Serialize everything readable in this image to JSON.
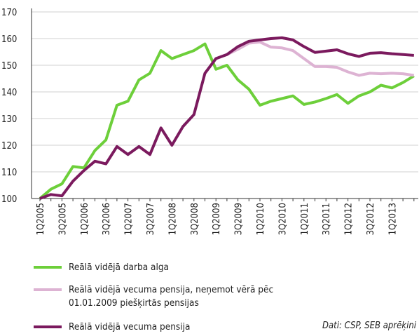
{
  "chart_data": {
    "type": "line",
    "categories": [
      "1Q2005",
      null,
      "3Q2005",
      null,
      "1Q2006",
      null,
      "3Q2006",
      null,
      "1Q2007",
      null,
      "3Q2007",
      null,
      "1Q2008",
      null,
      "3Q2008",
      null,
      "1Q2009",
      null,
      "3Q2009",
      null,
      "1Q2010",
      null,
      "3Q2010",
      null,
      "1Q2011",
      null,
      "3Q2011",
      null,
      "1Q2012",
      null,
      "3Q2012",
      null,
      "1Q2013",
      null,
      null
    ],
    "series": [
      {
        "name": "Reālā vidējā darba alga",
        "color": "#6dcf3a",
        "values": [
          100,
          103.5,
          105.5,
          112,
          111.5,
          118,
          122,
          135,
          136.5,
          144.5,
          147,
          155.5,
          152.5,
          154,
          155.5,
          158,
          148.5,
          150,
          144.5,
          141,
          135,
          136.5,
          137.5,
          138.5,
          135.3,
          136.2,
          137.5,
          139,
          135.7,
          138.5,
          140,
          142.5,
          141.5,
          143.5,
          146
        ]
      },
      {
        "name": "Reālā vidējā vecuma pensija, neņemot vērā pēc 01.01.2009 piešķirtās pensijas",
        "color": "#ddb3d3",
        "values": [
          null,
          null,
          null,
          null,
          null,
          null,
          null,
          null,
          null,
          null,
          null,
          null,
          null,
          null,
          null,
          null,
          152.5,
          154,
          156,
          158.3,
          158.7,
          156.8,
          156.5,
          155.5,
          152.5,
          149.5,
          149.5,
          149.2,
          147.5,
          146.2,
          147,
          146.8,
          147,
          146.8,
          146.2
        ]
      },
      {
        "name": "Reālā vidējā vecuma pensija",
        "color": "#7b1a5e",
        "values": [
          100,
          101.5,
          101,
          106.5,
          110.5,
          114,
          113,
          119.5,
          116.5,
          119.5,
          116.5,
          126.5,
          120,
          127,
          131.5,
          147,
          152.5,
          154,
          157,
          159,
          159.5,
          160,
          160.3,
          159.5,
          157,
          154.8,
          155.3,
          155.8,
          154.3,
          153.3,
          154.5,
          154.7,
          154.3,
          154,
          153.7
        ]
      }
    ],
    "ylim": [
      100,
      170
    ],
    "yticks": [
      100,
      110,
      120,
      130,
      140,
      150,
      160,
      170
    ],
    "grid": true,
    "source": "Dati: CSP, SEB aprēķini"
  }
}
